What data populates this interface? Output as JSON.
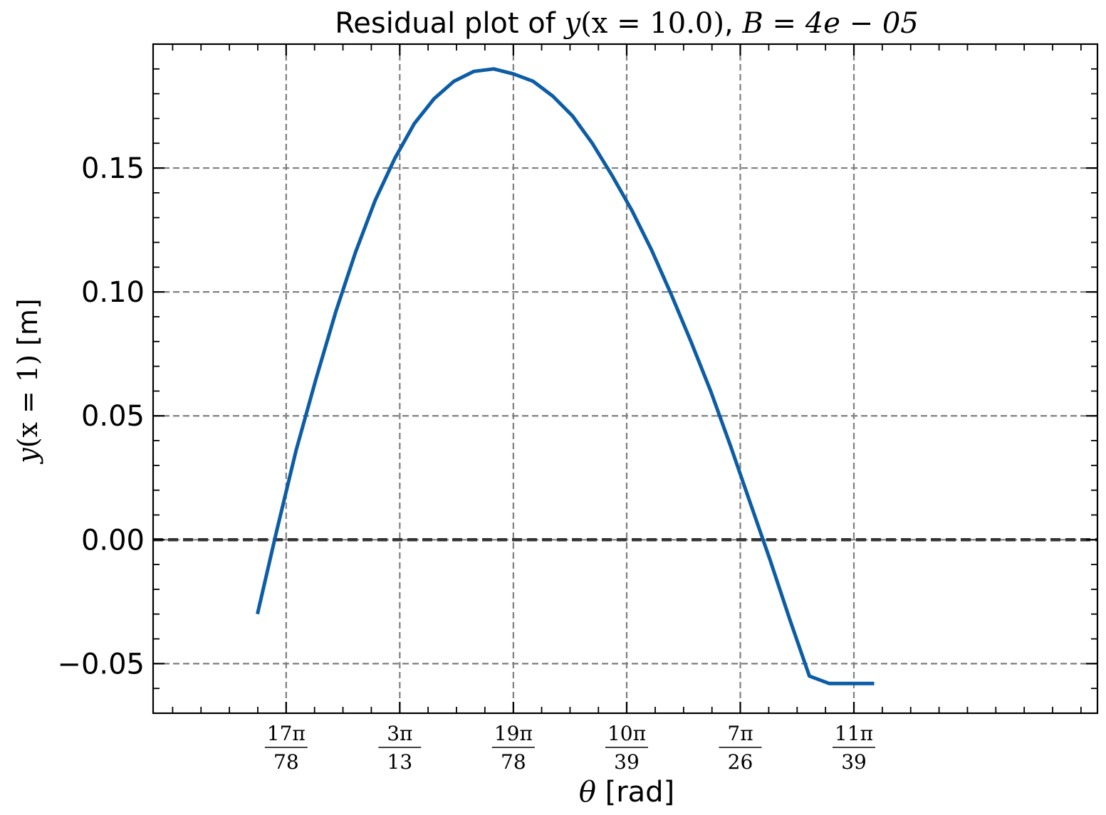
{
  "chart_data": {
    "type": "line",
    "title": {
      "prefix": "Residual plot of ",
      "y_func": "y",
      "x_expr": "(x = 10.0)",
      "sep": ", ",
      "b_expr": "B = 4e − 05"
    },
    "xlabel": {
      "symbol": "θ",
      "unit": " [rad]"
    },
    "ylabel": {
      "y_func": "y",
      "x_expr": "(x = 1)",
      "unit": " [m]"
    },
    "xlim": [
      0.6375,
      0.9725
    ],
    "ylim": [
      -0.07,
      0.2
    ],
    "grid": true,
    "x_ticks": [
      {
        "num": "17π",
        "den": "78",
        "value": 0.6847
      },
      {
        "num": "3π",
        "den": "13",
        "value": 0.725
      },
      {
        "num": "19π",
        "den": "78",
        "value": 0.7653
      },
      {
        "num": "10π",
        "den": "39",
        "value": 0.8055
      },
      {
        "num": "7π",
        "den": "26",
        "value": 0.8458
      },
      {
        "num": "11π",
        "den": "39",
        "value": 0.8861
      }
    ],
    "y_ticks": [
      {
        "label": "−0.05",
        "value": -0.05
      },
      {
        "label": "0.00",
        "value": 0.0
      },
      {
        "label": "0.05",
        "value": 0.05
      },
      {
        "label": "0.10",
        "value": 0.1
      },
      {
        "label": "0.15",
        "value": 0.15
      }
    ],
    "reference_line": {
      "y": 0.0
    },
    "series": [
      {
        "color": "#0c5da5",
        "x": [
          0.6745,
          0.6812,
          0.6882,
          0.6953,
          0.7023,
          0.7093,
          0.7163,
          0.7233,
          0.7302,
          0.7372,
          0.7442,
          0.7513,
          0.7583,
          0.7653,
          0.7723,
          0.7793,
          0.7863,
          0.7933,
          0.8003,
          0.8073,
          0.8143,
          0.8213,
          0.8283,
          0.8353,
          0.8423,
          0.8493,
          0.8563,
          0.8633,
          0.8703,
          0.8773,
          0.8843,
          0.8913,
          0.8933
        ],
        "y": [
          -0.03,
          0.003,
          0.036,
          0.065,
          0.092,
          0.116,
          0.137,
          0.154,
          0.168,
          0.178,
          0.185,
          0.189,
          0.19,
          0.188,
          0.185,
          0.179,
          0.171,
          0.16,
          0.147,
          0.133,
          0.117,
          0.099,
          0.08,
          0.06,
          0.038,
          0.015,
          -0.008,
          -0.032,
          -0.055,
          -0.058,
          -0.058,
          -0.058,
          -0.058
        ]
      }
    ]
  }
}
